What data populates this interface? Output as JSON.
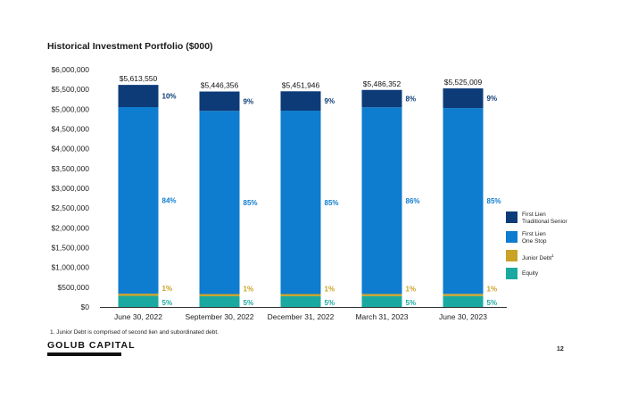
{
  "chart_data": {
    "type": "bar",
    "stacked": true,
    "title": "Historical Investment Portfolio ($000)",
    "xlabel": "",
    "ylabel": "",
    "ylim": [
      0,
      6000000
    ],
    "yticks": [
      "$0",
      "$500,000",
      "$1,000,000",
      "$1,500,000",
      "$2,000,000",
      "$2,500,000",
      "$3,000,000",
      "$3,500,000",
      "$4,000,000",
      "$4,500,000",
      "$5,000,000",
      "$5,500,000",
      "$6,000,000"
    ],
    "ytick_values": [
      0,
      500000,
      1000000,
      1500000,
      2000000,
      2500000,
      3000000,
      3500000,
      4000000,
      4500000,
      5000000,
      5500000,
      6000000
    ],
    "grid": false,
    "legend_position": "right",
    "categories": [
      "June 30, 2022",
      "September 30, 2022",
      "December 31, 2022",
      "March 31, 2023",
      "June 30, 2023"
    ],
    "totals": [
      5613550,
      5446356,
      5451946,
      5486352,
      5525009
    ],
    "total_labels": [
      "$5,613,550",
      "$5,446,356",
      "$5,451,946",
      "$5,486,352",
      "$5,525,009"
    ],
    "series": [
      {
        "name": "Equity",
        "color": "#1aa9a0",
        "label_color": "#1aa9a0",
        "percents": [
          5,
          5,
          5,
          5,
          5
        ],
        "labels": [
          "5%",
          "5%",
          "5%",
          "5%",
          "5%"
        ]
      },
      {
        "name": "Junior Debt",
        "name_sup": "1",
        "color": "#c9a227",
        "label_color": "#c9a227",
        "percents": [
          1,
          1,
          1,
          1,
          1
        ],
        "labels": [
          "1%",
          "1%",
          "1%",
          "1%",
          "1%"
        ]
      },
      {
        "name_lines": [
          "First Lien",
          "One Stop"
        ],
        "color": "#0e7ccf",
        "label_color": "#0e7ccf",
        "percents": [
          84,
          85,
          85,
          86,
          85
        ],
        "labels": [
          "84%",
          "85%",
          "85%",
          "86%",
          "85%"
        ]
      },
      {
        "name_lines": [
          "First Lien",
          "Traditional Senior"
        ],
        "color": "#0d3b78",
        "label_color": "#0d3b78",
        "percents": [
          10,
          9,
          9,
          8,
          9
        ],
        "labels": [
          "10%",
          "9%",
          "9%",
          "8%",
          "9%"
        ]
      }
    ]
  },
  "footnote": "1.  Junior Debt is comprised of second lien and subordinated debt.",
  "brand": "GOLUB CAPITAL",
  "page_number": "12"
}
